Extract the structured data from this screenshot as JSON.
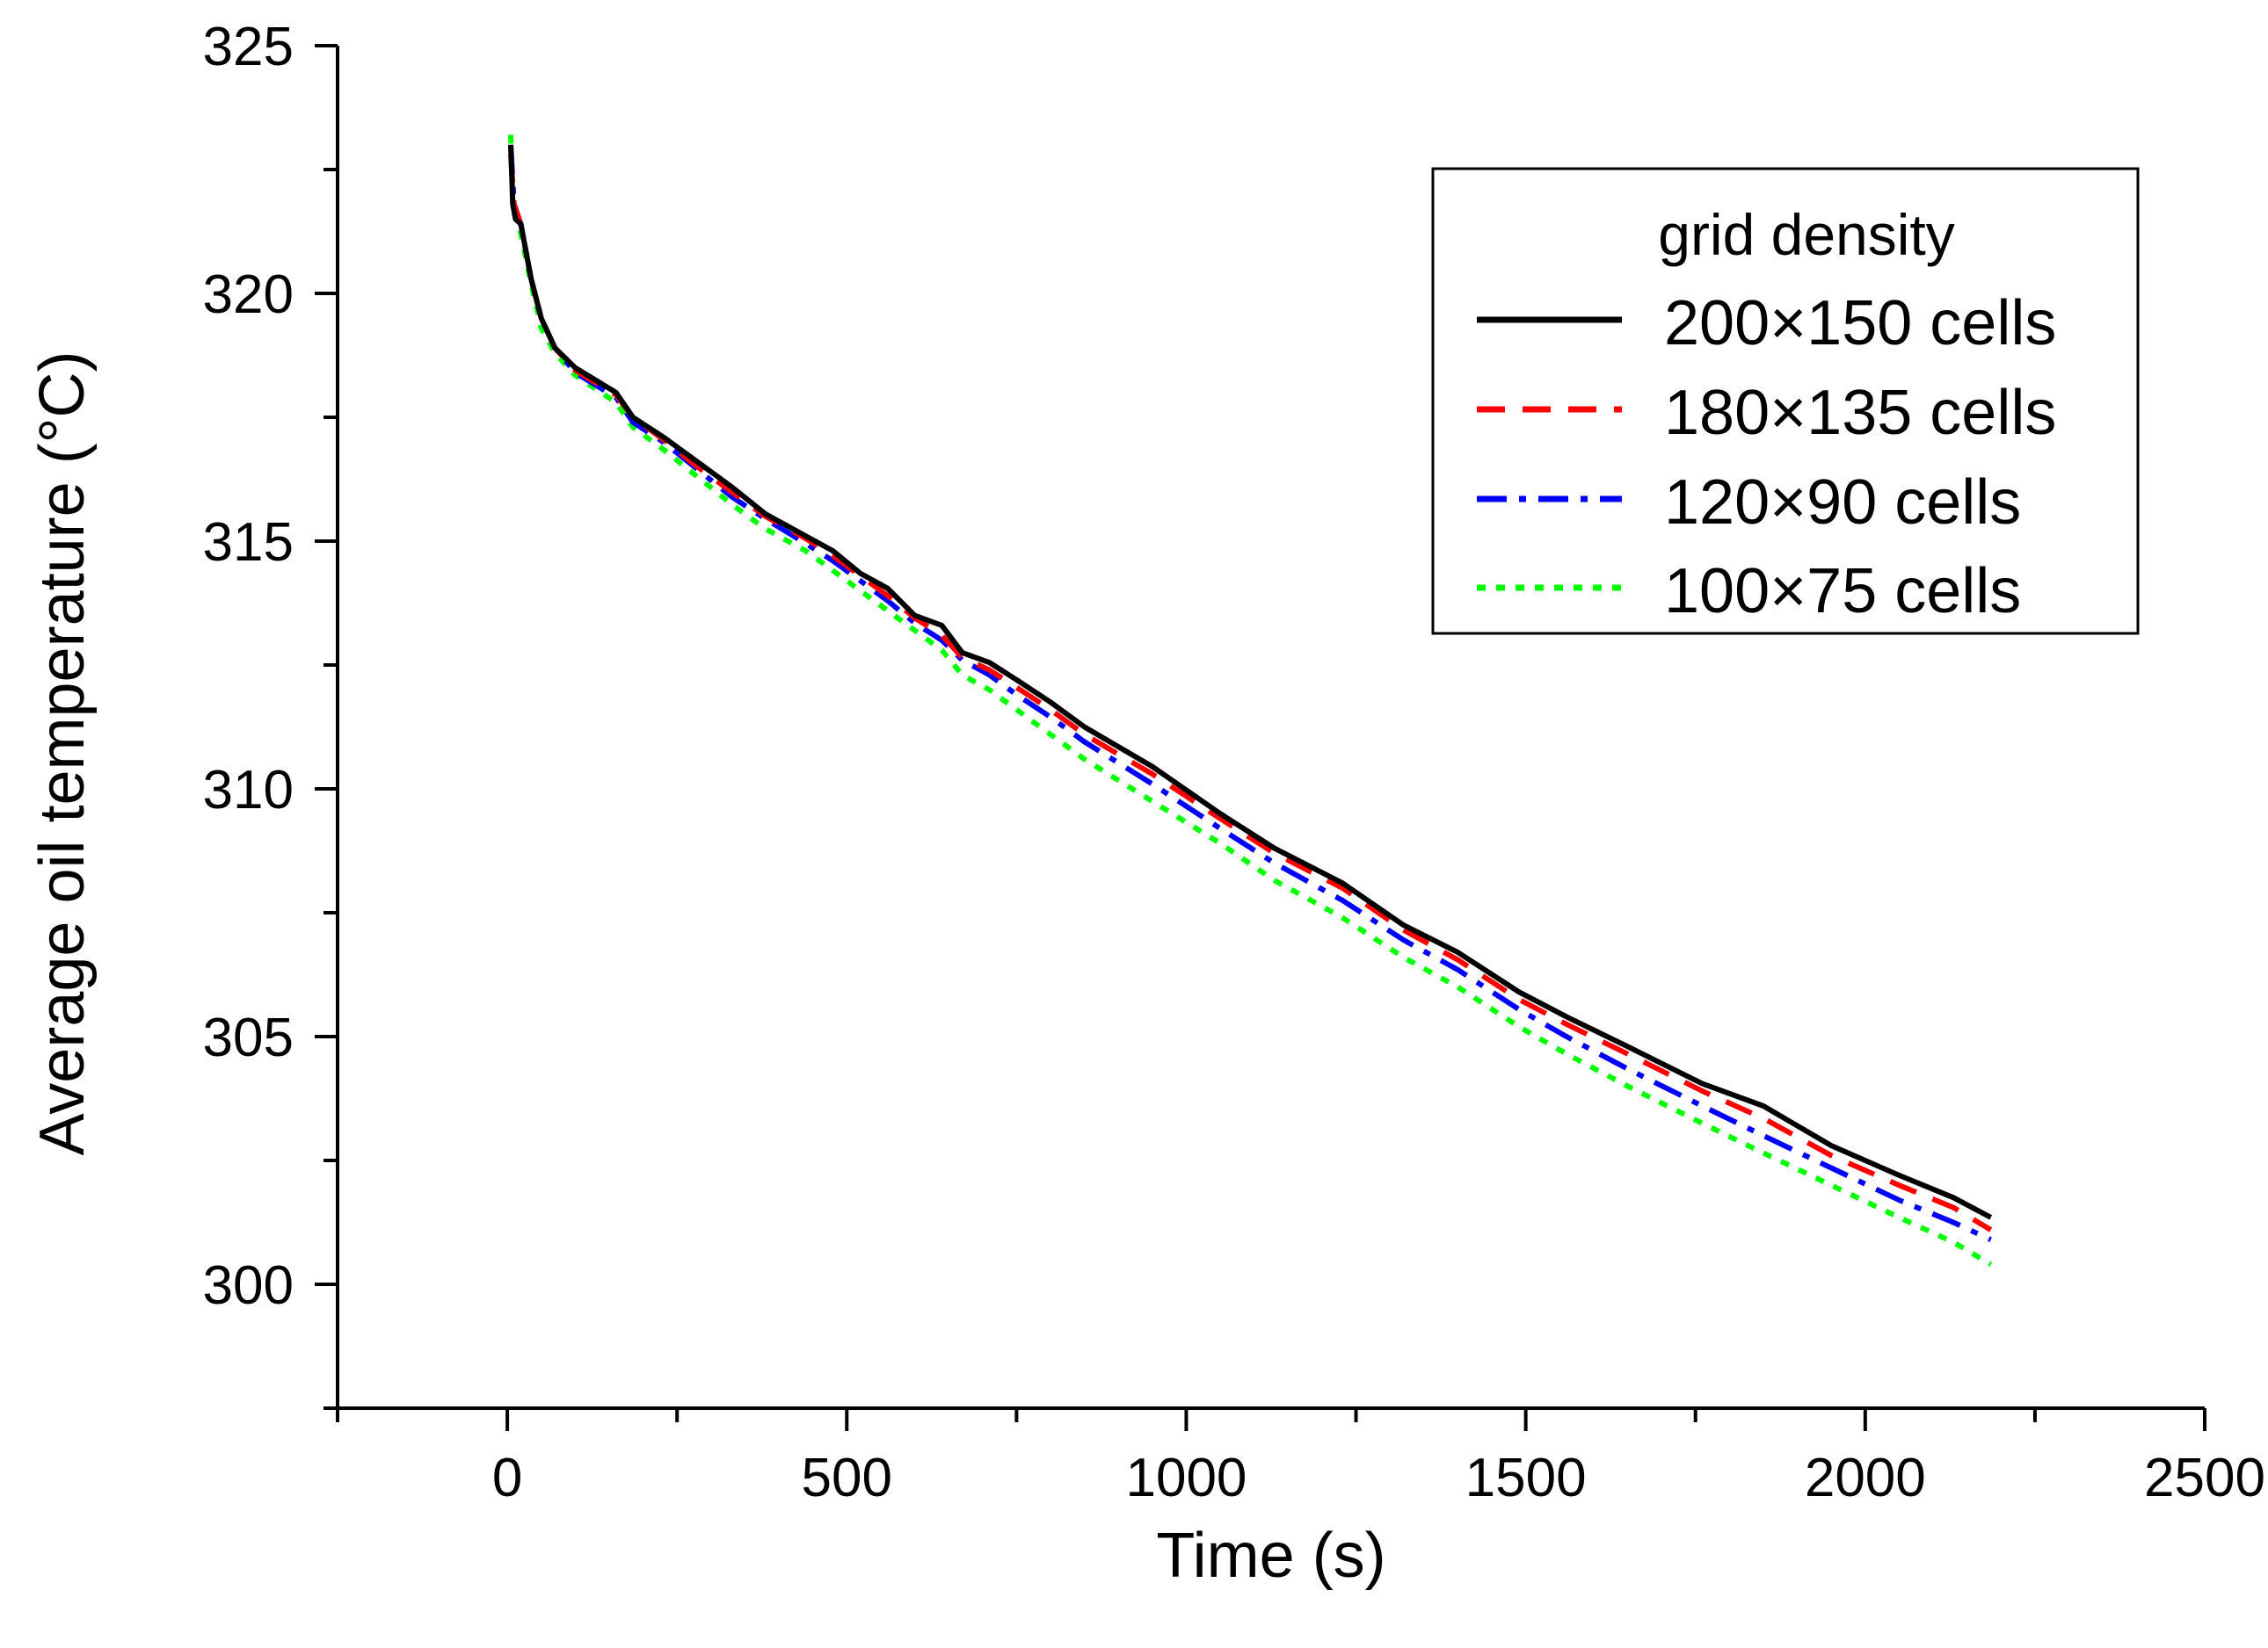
{
  "chart_data": {
    "type": "line",
    "title": "",
    "xlabel": "Time (s)",
    "ylabel": "Average oil temperature (°C)",
    "xlim": [
      -250,
      2500
    ],
    "ylim": [
      297.5,
      325
    ],
    "x_ticks": [
      0,
      500,
      1000,
      1500,
      2000,
      2500
    ],
    "x_tick_labels": [
      "0",
      "500",
      "1000",
      "1500",
      "2000",
      "2500"
    ],
    "x_minor_ticks": [
      -250,
      250,
      750,
      1250,
      1750,
      2250
    ],
    "y_ticks": [
      300,
      305,
      310,
      315,
      320,
      325
    ],
    "y_tick_labels": [
      "300",
      "305",
      "310",
      "315",
      "320",
      "325"
    ],
    "y_minor_ticks": [
      297.5,
      302.5,
      307.5,
      312.5,
      317.5,
      322.5
    ],
    "grid": false,
    "legend": {
      "title": "grid density",
      "position": "top-right"
    },
    "series": [
      {
        "name": "200×150 cells",
        "color": "#000000",
        "style": "solid",
        "points": [
          [
            5,
            323
          ],
          [
            8,
            321.8
          ],
          [
            12,
            321.5
          ],
          [
            20,
            321.4
          ],
          [
            35,
            320.3
          ],
          [
            50,
            319.5
          ],
          [
            70,
            318.9
          ],
          [
            100,
            318.5
          ],
          [
            160,
            318.0
          ],
          [
            185,
            317.5
          ],
          [
            230,
            317.1
          ],
          [
            280,
            316.6
          ],
          [
            330,
            316.1
          ],
          [
            380,
            315.55
          ],
          [
            440,
            315.1
          ],
          [
            480,
            314.8
          ],
          [
            520,
            314.35
          ],
          [
            560,
            314.05
          ],
          [
            600,
            313.5
          ],
          [
            640,
            313.3
          ],
          [
            670,
            312.75
          ],
          [
            710,
            312.55
          ],
          [
            750,
            312.2
          ],
          [
            800,
            311.75
          ],
          [
            850,
            311.25
          ],
          [
            950,
            310.45
          ],
          [
            1050,
            309.5
          ],
          [
            1130,
            308.8
          ],
          [
            1230,
            308.1
          ],
          [
            1320,
            307.25
          ],
          [
            1400,
            306.7
          ],
          [
            1490,
            305.9
          ],
          [
            1560,
            305.4
          ],
          [
            1650,
            304.8
          ],
          [
            1760,
            304.05
          ],
          [
            1850,
            303.6
          ],
          [
            1950,
            302.8
          ],
          [
            2050,
            302.2
          ],
          [
            2130,
            301.75
          ],
          [
            2185,
            301.35
          ]
        ]
      },
      {
        "name": "180×135 cells",
        "color": "#ff0000",
        "style": "dash",
        "points": [
          [
            5,
            322.8
          ],
          [
            10,
            321.8
          ],
          [
            20,
            321.4
          ],
          [
            35,
            320.3
          ],
          [
            50,
            319.5
          ],
          [
            70,
            318.9
          ],
          [
            100,
            318.45
          ],
          [
            160,
            317.95
          ],
          [
            185,
            317.5
          ],
          [
            230,
            317.05
          ],
          [
            280,
            316.5
          ],
          [
            330,
            316.0
          ],
          [
            380,
            315.5
          ],
          [
            440,
            315.05
          ],
          [
            480,
            314.7
          ],
          [
            520,
            314.3
          ],
          [
            560,
            313.9
          ],
          [
            600,
            313.45
          ],
          [
            640,
            313.1
          ],
          [
            670,
            312.65
          ],
          [
            710,
            312.4
          ],
          [
            750,
            312.05
          ],
          [
            800,
            311.6
          ],
          [
            850,
            311.1
          ],
          [
            950,
            310.3
          ],
          [
            1050,
            309.4
          ],
          [
            1130,
            308.7
          ],
          [
            1230,
            308.0
          ],
          [
            1320,
            307.15
          ],
          [
            1400,
            306.55
          ],
          [
            1490,
            305.75
          ],
          [
            1560,
            305.25
          ],
          [
            1650,
            304.65
          ],
          [
            1760,
            303.9
          ],
          [
            1850,
            303.35
          ],
          [
            1950,
            302.6
          ],
          [
            2050,
            302.0
          ],
          [
            2130,
            301.55
          ],
          [
            2185,
            301.1
          ]
        ]
      },
      {
        "name": "120×90 cells",
        "color": "#0000ff",
        "style": "dashdot",
        "points": [
          [
            5,
            323
          ],
          [
            10,
            321.8
          ],
          [
            20,
            321.4
          ],
          [
            35,
            320.3
          ],
          [
            50,
            319.5
          ],
          [
            70,
            318.9
          ],
          [
            100,
            318.4
          ],
          [
            160,
            317.9
          ],
          [
            185,
            317.4
          ],
          [
            230,
            317.0
          ],
          [
            280,
            316.45
          ],
          [
            330,
            315.9
          ],
          [
            380,
            315.45
          ],
          [
            440,
            314.95
          ],
          [
            480,
            314.6
          ],
          [
            520,
            314.2
          ],
          [
            560,
            313.8
          ],
          [
            600,
            313.35
          ],
          [
            640,
            313.0
          ],
          [
            670,
            312.6
          ],
          [
            710,
            312.3
          ],
          [
            750,
            311.9
          ],
          [
            800,
            311.45
          ],
          [
            850,
            310.95
          ],
          [
            950,
            310.1
          ],
          [
            1050,
            309.2
          ],
          [
            1130,
            308.5
          ],
          [
            1230,
            307.75
          ],
          [
            1320,
            306.95
          ],
          [
            1400,
            306.35
          ],
          [
            1490,
            305.55
          ],
          [
            1560,
            305.0
          ],
          [
            1650,
            304.35
          ],
          [
            1760,
            303.6
          ],
          [
            1850,
            303.0
          ],
          [
            1950,
            302.35
          ],
          [
            2050,
            301.7
          ],
          [
            2130,
            301.25
          ],
          [
            2185,
            300.9
          ]
        ]
      },
      {
        "name": "100×75 cells",
        "color": "#00ff00",
        "style": "dot",
        "points": [
          [
            5,
            323.2
          ],
          [
            8,
            321.8
          ],
          [
            20,
            321.2
          ],
          [
            35,
            320.2
          ],
          [
            50,
            319.3
          ],
          [
            70,
            318.8
          ],
          [
            100,
            318.35
          ],
          [
            160,
            317.8
          ],
          [
            185,
            317.3
          ],
          [
            230,
            316.85
          ],
          [
            280,
            316.3
          ],
          [
            330,
            315.75
          ],
          [
            380,
            315.25
          ],
          [
            440,
            314.8
          ],
          [
            480,
            314.4
          ],
          [
            520,
            314.0
          ],
          [
            560,
            313.6
          ],
          [
            600,
            313.2
          ],
          [
            640,
            312.8
          ],
          [
            670,
            312.3
          ],
          [
            710,
            312.0
          ],
          [
            750,
            311.6
          ],
          [
            800,
            311.1
          ],
          [
            850,
            310.6
          ],
          [
            950,
            309.75
          ],
          [
            1050,
            308.9
          ],
          [
            1130,
            308.15
          ],
          [
            1230,
            307.4
          ],
          [
            1320,
            306.6
          ],
          [
            1400,
            306.0
          ],
          [
            1490,
            305.2
          ],
          [
            1560,
            304.65
          ],
          [
            1650,
            304.0
          ],
          [
            1760,
            303.25
          ],
          [
            1850,
            302.65
          ],
          [
            1950,
            302.0
          ],
          [
            2050,
            301.35
          ],
          [
            2130,
            300.85
          ],
          [
            2185,
            300.4
          ]
        ]
      }
    ]
  }
}
